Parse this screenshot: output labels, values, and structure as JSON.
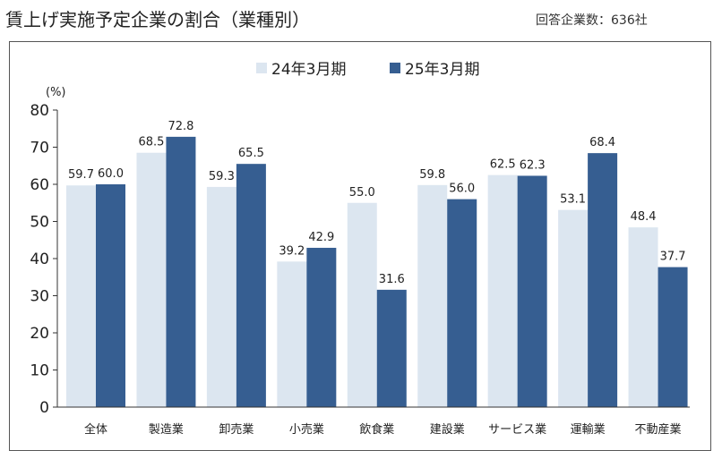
{
  "title": "賃上げ実施予定企業の割合（業種別）",
  "note": "回答企業数：636社",
  "chart_data": {
    "type": "bar",
    "title": "賃上げ実施予定企業の割合（業種別）",
    "ylabel": "(%)",
    "xlabel": "",
    "ylim": [
      0,
      80
    ],
    "yticks": [
      0,
      10,
      20,
      30,
      40,
      50,
      60,
      70,
      80
    ],
    "legend_position": "top-center",
    "categories": [
      "全体",
      "製造業",
      "卸売業",
      "小売業",
      "飲食業",
      "建設業",
      "サービス業",
      "運輸業",
      "不動産業"
    ],
    "series": [
      {
        "name": "24年3月期",
        "color": "#dce6f0",
        "values": [
          59.7,
          68.5,
          59.3,
          39.2,
          55.0,
          59.8,
          62.5,
          53.1,
          48.4
        ]
      },
      {
        "name": "25年3月期",
        "color": "#365e91",
        "values": [
          60.0,
          72.8,
          65.5,
          42.9,
          31.6,
          56.0,
          62.3,
          68.4,
          37.7
        ]
      }
    ]
  }
}
